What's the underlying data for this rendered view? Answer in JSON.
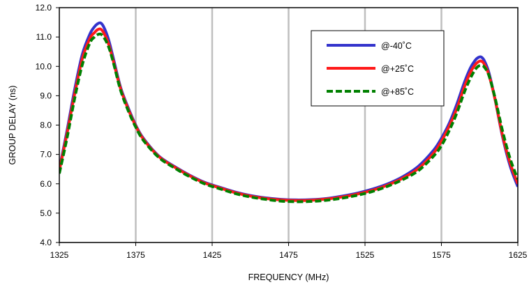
{
  "chart_data": {
    "type": "line",
    "title": "",
    "xlabel": "FREQUENCY (MHz)",
    "ylabel": "GROUP DELAY (ns)",
    "xlim": [
      1325,
      1625
    ],
    "ylim": [
      4.0,
      12.0
    ],
    "xticks": [
      1325,
      1375,
      1425,
      1475,
      1525,
      1575,
      1625
    ],
    "xtick_labels": [
      "1325",
      "1375",
      "1425",
      "1475",
      "1525",
      "1575",
      "1625"
    ],
    "yticks": [
      4,
      5,
      6,
      7,
      8,
      9,
      10,
      11,
      12
    ],
    "ytick_labels": [
      "4.0",
      "5.0",
      "6.0",
      "7.0",
      "8.0",
      "9.0",
      "10.0",
      "11.0",
      "12.0"
    ],
    "grid": {
      "x": true,
      "y": false,
      "color": "#bfbfbf"
    },
    "legend_position": "top-right",
    "series": [
      {
        "name": "@-40˚C",
        "color": "#3333cc",
        "dash": "solid",
        "x": [
          1325,
          1330,
          1335,
          1340,
          1345,
          1348,
          1350,
          1352,
          1354,
          1357,
          1360,
          1365,
          1370,
          1375,
          1380,
          1390,
          1400,
          1410,
          1420,
          1430,
          1440,
          1450,
          1460,
          1470,
          1480,
          1490,
          1500,
          1510,
          1520,
          1530,
          1540,
          1550,
          1560,
          1570,
          1575,
          1580,
          1585,
          1590,
          1594,
          1597,
          1599,
          1601,
          1603,
          1606,
          1610,
          1615,
          1620,
          1625
        ],
        "y": [
          6.5,
          7.8,
          9.2,
          10.4,
          11.1,
          11.35,
          11.45,
          11.48,
          11.35,
          10.95,
          10.35,
          9.3,
          8.6,
          8.0,
          7.55,
          6.95,
          6.6,
          6.3,
          6.05,
          5.88,
          5.72,
          5.6,
          5.52,
          5.47,
          5.45,
          5.46,
          5.5,
          5.58,
          5.68,
          5.82,
          6.0,
          6.25,
          6.6,
          7.15,
          7.55,
          8.05,
          8.7,
          9.45,
          9.95,
          10.2,
          10.3,
          10.32,
          10.2,
          9.8,
          8.9,
          7.6,
          6.6,
          5.9
        ]
      },
      {
        "name": "@+25˚C",
        "color": "#ff1a1a",
        "dash": "solid",
        "x": [
          1325,
          1330,
          1335,
          1340,
          1345,
          1348,
          1350,
          1352,
          1354,
          1357,
          1360,
          1365,
          1370,
          1375,
          1380,
          1390,
          1400,
          1410,
          1420,
          1430,
          1440,
          1450,
          1460,
          1470,
          1480,
          1490,
          1500,
          1510,
          1520,
          1530,
          1540,
          1550,
          1560,
          1570,
          1575,
          1580,
          1585,
          1590,
          1594,
          1597,
          1599,
          1601,
          1603,
          1606,
          1610,
          1615,
          1620,
          1625
        ],
        "y": [
          6.45,
          7.7,
          9.05,
          10.25,
          10.95,
          11.15,
          11.25,
          11.27,
          11.15,
          10.8,
          10.25,
          9.25,
          8.55,
          7.97,
          7.52,
          6.93,
          6.58,
          6.28,
          6.03,
          5.86,
          5.7,
          5.58,
          5.5,
          5.45,
          5.43,
          5.44,
          5.48,
          5.55,
          5.65,
          5.78,
          5.96,
          6.2,
          6.52,
          7.05,
          7.45,
          7.95,
          8.55,
          9.3,
          9.8,
          10.05,
          10.15,
          10.18,
          10.08,
          9.72,
          8.9,
          7.65,
          6.7,
          6.0
        ]
      },
      {
        "name": "@+85˚C",
        "color": "#008000",
        "dash": "dashed",
        "x": [
          1325,
          1330,
          1335,
          1340,
          1345,
          1348,
          1350,
          1352,
          1354,
          1357,
          1360,
          1365,
          1370,
          1375,
          1380,
          1390,
          1400,
          1410,
          1420,
          1430,
          1440,
          1450,
          1460,
          1470,
          1480,
          1490,
          1500,
          1510,
          1520,
          1530,
          1540,
          1550,
          1560,
          1570,
          1575,
          1580,
          1585,
          1590,
          1594,
          1597,
          1599,
          1601,
          1603,
          1606,
          1610,
          1615,
          1620,
          1625
        ],
        "y": [
          6.35,
          7.55,
          8.9,
          10.05,
          10.8,
          11.0,
          11.08,
          11.1,
          11.0,
          10.7,
          10.2,
          9.2,
          8.5,
          7.93,
          7.48,
          6.9,
          6.55,
          6.25,
          6.0,
          5.83,
          5.67,
          5.55,
          5.47,
          5.41,
          5.39,
          5.4,
          5.44,
          5.51,
          5.61,
          5.74,
          5.92,
          6.15,
          6.45,
          6.95,
          7.3,
          7.8,
          8.4,
          9.12,
          9.6,
          9.88,
          10.0,
          10.03,
          9.98,
          9.7,
          8.95,
          7.8,
          6.85,
          6.15
        ]
      }
    ]
  }
}
